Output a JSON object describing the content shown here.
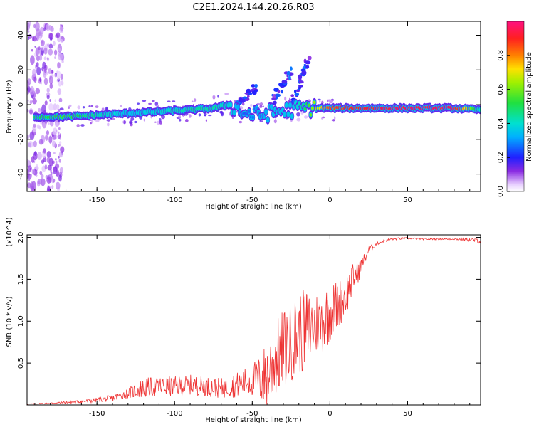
{
  "title": "C2E1.2024.144.20.26.R03",
  "colors": {
    "snr_line": "#ee3333",
    "axis": "#000000",
    "track_core": "#ff2d2d",
    "track_mid": "#30e030",
    "track_outer": "#2020ff",
    "speckle": "#8a2be2"
  },
  "chart_data": [
    {
      "type": "heatmap",
      "title": "",
      "xlabel": "Height of straight line (km)",
      "ylabel": "Frequency (Hz)",
      "xlim": [
        -195,
        97
      ],
      "ylim": [
        -50,
        48
      ],
      "xticks": [
        -150,
        -100,
        -50,
        0,
        50
      ],
      "yticks": [
        -40,
        -20,
        0,
        20,
        40
      ],
      "grid": false,
      "colorbar": {
        "label": "Normalized spectral amplitude",
        "range": [
          0.0,
          1.0
        ],
        "ticks": [
          "0.0",
          "0.2",
          "0.4",
          "0.6",
          "0.8"
        ],
        "colormap": "rainbow (magenta-blue-cyan-green-yellow-red)"
      },
      "features": {
        "main_track": {
          "x": [
            -190,
            -170,
            -150,
            -130,
            -110,
            -90,
            -75,
            -65,
            -55,
            -45,
            -35,
            -25,
            -18,
            -12,
            0,
            20,
            40,
            60,
            80,
            97
          ],
          "freq": [
            -7,
            -7,
            -6,
            -5,
            -4,
            -3,
            -2,
            0,
            -5,
            -6,
            -4,
            -3,
            -2,
            -2,
            -2,
            -2,
            -2,
            -2,
            -2,
            -3
          ],
          "amplitude": [
            0.5,
            0.55,
            0.45,
            0.35,
            0.4,
            0.45,
            0.45,
            0.4,
            0.25,
            0.3,
            0.35,
            0.35,
            0.45,
            0.6,
            0.85,
            0.9,
            0.95,
            0.95,
            0.95,
            0.4
          ]
        },
        "upward_streaks": [
          {
            "x_start": -60,
            "x_end": -48,
            "f_start": 0,
            "f_end": 10
          },
          {
            "x_start": -38,
            "x_end": -25,
            "f_start": 0,
            "f_end": 20
          },
          {
            "x_start": -25,
            "x_end": -14,
            "f_start": 0,
            "f_end": 26
          }
        ],
        "noise_band_x": [
          -195,
          -172
        ]
      }
    },
    {
      "type": "line",
      "title": "",
      "xlabel": "Height of straight line (km)",
      "ylabel": "SNR (10 * v/v)",
      "y_multiplier": "(x10^4)",
      "xlim": [
        -195,
        97
      ],
      "ylim": [
        0,
        2.03
      ],
      "xticks": [
        -150,
        -100,
        -50,
        0,
        50
      ],
      "yticks": [
        0.5,
        1.0,
        1.5,
        2.0
      ],
      "grid": false,
      "series": [
        {
          "x": [
            -195,
            -180,
            -160,
            -150,
            -140,
            -130,
            -120,
            -110,
            -100,
            -90,
            -80,
            -70,
            -60,
            -50,
            -45,
            -40,
            -35,
            -30,
            -25,
            -20,
            -15,
            -10,
            -5,
            0,
            5,
            10,
            15,
            20,
            25,
            30,
            35,
            40,
            50,
            60,
            70,
            80,
            90,
            97
          ],
          "y": [
            0.01,
            0.02,
            0.04,
            0.06,
            0.08,
            0.14,
            0.2,
            0.22,
            0.22,
            0.24,
            0.22,
            0.2,
            0.24,
            0.3,
            0.3,
            0.36,
            0.55,
            0.65,
            0.75,
            0.85,
            0.9,
            0.95,
            1.0,
            1.1,
            1.2,
            1.3,
            1.5,
            1.65,
            1.85,
            1.92,
            1.96,
            1.98,
            1.99,
            1.98,
            1.98,
            1.98,
            1.97,
            1.96
          ],
          "noise": [
            0.005,
            0.01,
            0.02,
            0.03,
            0.04,
            0.06,
            0.12,
            0.12,
            0.12,
            0.12,
            0.12,
            0.12,
            0.15,
            0.2,
            0.3,
            0.45,
            0.45,
            0.5,
            0.5,
            0.5,
            0.5,
            0.4,
            0.4,
            0.35,
            0.3,
            0.25,
            0.2,
            0.1,
            0.05,
            0.02,
            0.015,
            0.015,
            0.01,
            0.01,
            0.01,
            0.01,
            0.02,
            0.04
          ]
        }
      ]
    }
  ]
}
